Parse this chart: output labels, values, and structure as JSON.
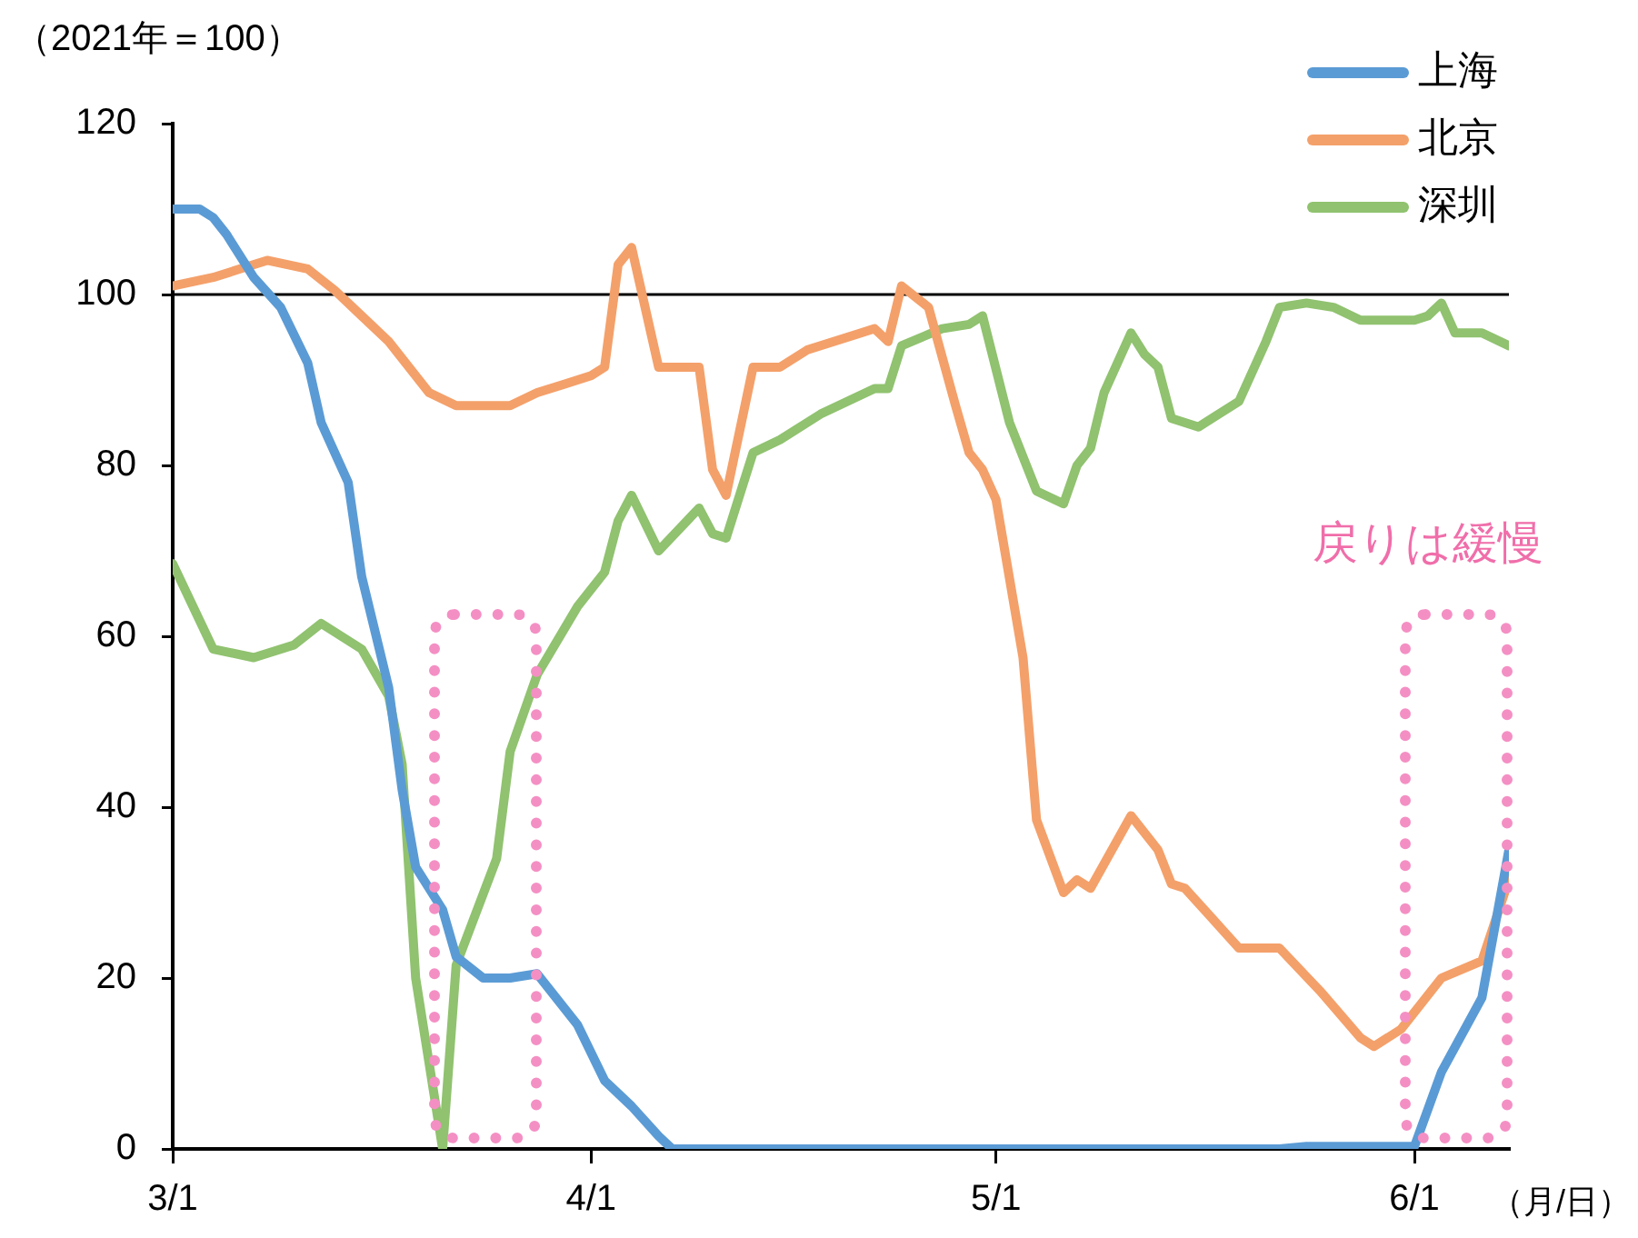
{
  "chart_data": {
    "type": "line",
    "ylabel": "（2021年＝100）",
    "xlabel": "（月/日）",
    "xlim": [
      "--03-01",
      "--06-08"
    ],
    "xticks": [
      {
        "value": "--03-01",
        "label": "3/1"
      },
      {
        "value": "--04-01",
        "label": "4/1"
      },
      {
        "value": "--05-01",
        "label": "5/1"
      },
      {
        "value": "--06-01",
        "label": "6/1"
      }
    ],
    "ylim": [
      0,
      120
    ],
    "yticks": [
      0,
      20,
      40,
      60,
      80,
      100,
      120
    ],
    "grid": false,
    "legend": "top right",
    "marker": "none",
    "line_style": "solid",
    "ref_lines": [
      {
        "axis": "y",
        "value": 100,
        "color": "#000000"
      }
    ],
    "annotations": [
      "戻りは緩慢"
    ],
    "series": [
      {
        "name": "上海",
        "color": "#5b9bd5",
        "x": [
          "--03-01",
          "--03-03",
          "--03-04",
          "--03-05",
          "--03-07",
          "--03-09",
          "--03-11",
          "--03-12",
          "--03-14",
          "--03-15",
          "--03-17",
          "--03-18",
          "--03-19",
          "--03-21",
          "--03-22",
          "--03-24",
          "--03-26",
          "--03-28",
          "--03-29",
          "--03-31",
          "--04-02",
          "--04-04",
          "--04-06",
          "--04-07",
          "--05-22",
          "--05-24",
          "--06-01",
          "--06-03",
          "--06-06",
          "--06-08"
        ],
        "values": [
          110,
          110,
          109,
          107,
          102,
          98.5,
          92,
          85,
          78,
          67,
          54,
          42,
          33,
          28,
          22.5,
          20,
          20,
          20.5,
          18.5,
          14.5,
          8,
          5,
          1.5,
          0,
          0,
          0.3,
          0.3,
          9,
          17.7,
          35
        ]
      },
      {
        "name": "北京",
        "color": "#f4a06a",
        "x": [
          "--03-01",
          "--03-04",
          "--03-06",
          "--03-08",
          "--03-11",
          "--03-13",
          "--03-15",
          "--03-17",
          "--03-20",
          "--03-22",
          "--03-26",
          "--03-28",
          "--03-30",
          "--04-01",
          "--04-02",
          "--04-03",
          "--04-04",
          "--04-06",
          "--04-09",
          "--04-10",
          "--04-11",
          "--04-13",
          "--04-15",
          "--04-17",
          "--04-21",
          "--04-22",
          "--04-23",
          "--04-24",
          "--04-26",
          "--04-28",
          "--04-29",
          "--04-30",
          "--05-01",
          "--05-03",
          "--05-04",
          "--05-06",
          "--05-07",
          "--05-08",
          "--05-11",
          "--05-13",
          "--05-14",
          "--05-15",
          "--05-17",
          "--05-19",
          "--05-22",
          "--05-25",
          "--05-28",
          "--05-29",
          "--05-31",
          "--06-03",
          "--06-06",
          "--06-08"
        ],
        "values": [
          101,
          102,
          103,
          104,
          103,
          100.5,
          97.5,
          94.5,
          88.5,
          87,
          87,
          88.5,
          89.5,
          90.5,
          91.5,
          103.5,
          105.5,
          91.5,
          91.5,
          79.5,
          76.5,
          91.5,
          91.5,
          93.5,
          95.5,
          96,
          94.5,
          101,
          98.5,
          87,
          81.5,
          79.5,
          76,
          57.5,
          38.5,
          30,
          31.5,
          30.5,
          39,
          35,
          31,
          30.5,
          27,
          23.5,
          23.5,
          18.5,
          13,
          12,
          14,
          20,
          22,
          31.5
        ]
      },
      {
        "name": "深圳",
        "color": "#90c26f",
        "x": [
          "--03-01",
          "--03-04",
          "--03-07",
          "--03-10",
          "--03-12",
          "--03-15",
          "--03-17",
          "--03-18",
          "--03-19",
          "--03-21",
          "--03-22",
          "--03-25",
          "--03-26",
          "--03-28",
          "--03-31",
          "--04-02",
          "--04-03",
          "--04-04",
          "--04-06",
          "--04-09",
          "--04-10",
          "--04-11",
          "--04-13",
          "--04-15",
          "--04-18",
          "--04-22",
          "--04-23",
          "--04-24",
          "--04-27",
          "--04-29",
          "--04-30",
          "--05-02",
          "--05-04",
          "--05-06",
          "--05-07",
          "--05-08",
          "--05-09",
          "--05-11",
          "--05-12",
          "--05-13",
          "--05-14",
          "--05-16",
          "--05-17",
          "--05-19",
          "--05-21",
          "--05-22",
          "--05-24",
          "--05-26",
          "--05-28",
          "--06-01",
          "--06-02",
          "--06-03",
          "--06-04",
          "--06-06",
          "--06-08"
        ],
        "values": [
          68.5,
          58.5,
          57.5,
          59,
          61.5,
          58.5,
          53,
          45,
          20,
          0,
          21.5,
          34,
          46.5,
          55.5,
          63.5,
          67.5,
          73.5,
          76.5,
          70,
          75,
          72,
          71.5,
          81.5,
          83,
          86,
          89,
          89,
          94,
          96,
          96.5,
          97.5,
          85,
          77,
          75.5,
          80,
          82,
          88.5,
          95.5,
          93,
          91.5,
          85.5,
          84.5,
          85.5,
          87.5,
          94.5,
          98.5,
          99,
          98.5,
          97,
          97,
          97.5,
          99,
          95.5,
          95.5,
          94
        ]
      }
    ]
  }
}
